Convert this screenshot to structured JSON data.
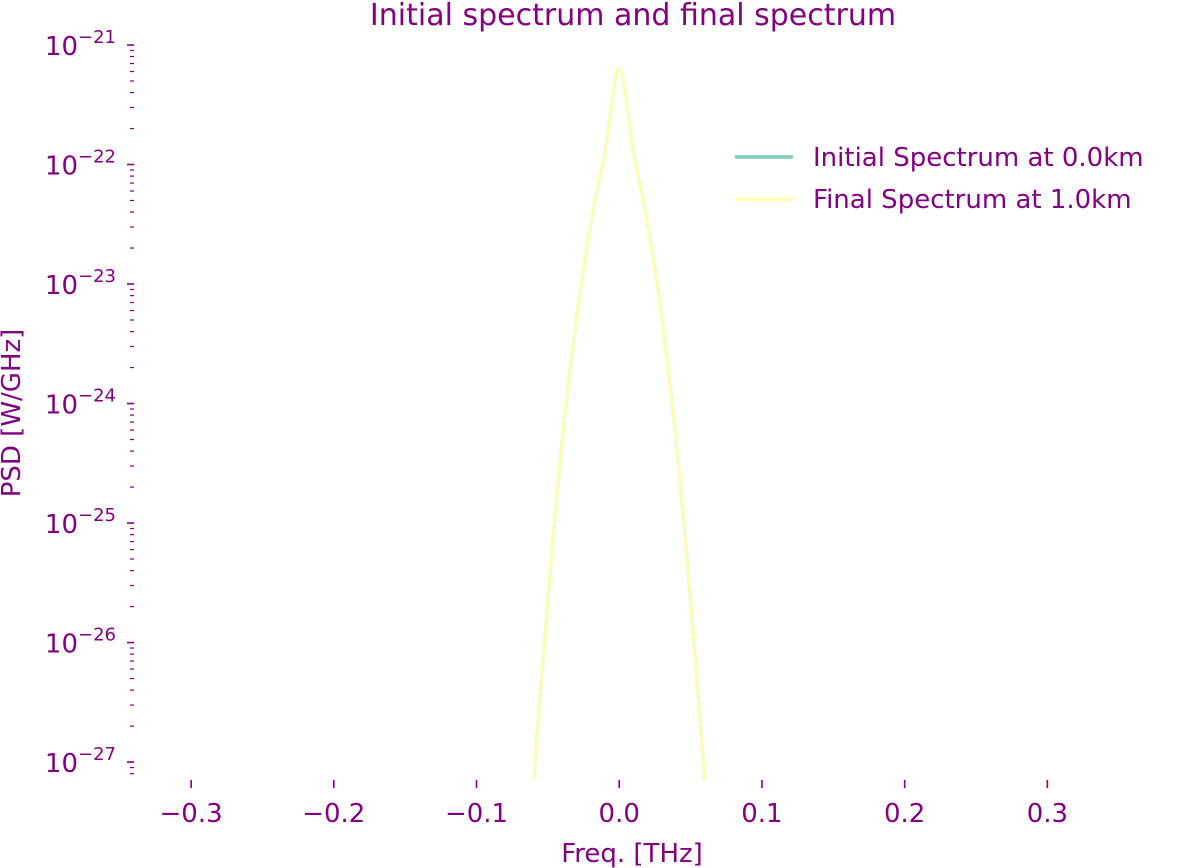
{
  "chart_data": {
    "type": "line",
    "title": "Initial spectrum and final spectrum",
    "xlabel": "Freq. [THz]",
    "ylabel": "PSD [W/GHz]",
    "xlim": [
      -0.34,
      0.36
    ],
    "ylim_log10": [
      -27.15,
      -21.0
    ],
    "y_scale": "log",
    "x_ticks": [
      -0.3,
      -0.2,
      -0.1,
      0.0,
      0.1,
      0.2,
      0.3
    ],
    "x_tick_labels": [
      "−0.3",
      "−0.2",
      "−0.1",
      "0.0",
      "0.1",
      "0.2",
      "0.3"
    ],
    "y_ticks": [
      {
        "exp": -21,
        "base": "10",
        "sup": "−21"
      },
      {
        "exp": -22,
        "base": "10",
        "sup": "−22"
      },
      {
        "exp": -23,
        "base": "10",
        "sup": "−23"
      },
      {
        "exp": -24,
        "base": "10",
        "sup": "−24"
      },
      {
        "exp": -25,
        "base": "10",
        "sup": "−25"
      },
      {
        "exp": -26,
        "base": "10",
        "sup": "−26"
      },
      {
        "exp": -27,
        "base": "10",
        "sup": "−27"
      }
    ],
    "legend_position": "top-right",
    "grid": false,
    "text_color": "#800080",
    "series": [
      {
        "name": "Initial Spectrum at 0.0km",
        "color": "#7fcdbb",
        "x": [
          -0.06,
          -0.05,
          -0.04,
          -0.03,
          -0.02,
          -0.01,
          0.0,
          0.01,
          0.02,
          0.03,
          0.04,
          0.05,
          0.06
        ],
        "y_log10": [
          -27.15,
          -25.65,
          -24.32,
          -23.3,
          -22.5,
          -21.9,
          -21.2,
          -21.9,
          -22.5,
          -23.3,
          -24.32,
          -25.65,
          -27.15
        ]
      },
      {
        "name": "Final Spectrum at 1.0km",
        "color": "#ffffb2",
        "x": [
          -0.06,
          -0.05,
          -0.04,
          -0.03,
          -0.02,
          -0.01,
          0.0,
          0.01,
          0.02,
          0.03,
          0.04,
          0.05,
          0.06
        ],
        "y_log10": [
          -27.15,
          -25.65,
          -24.32,
          -23.3,
          -22.5,
          -21.9,
          -21.2,
          -21.9,
          -22.5,
          -23.3,
          -24.32,
          -25.65,
          -27.15
        ]
      }
    ]
  }
}
